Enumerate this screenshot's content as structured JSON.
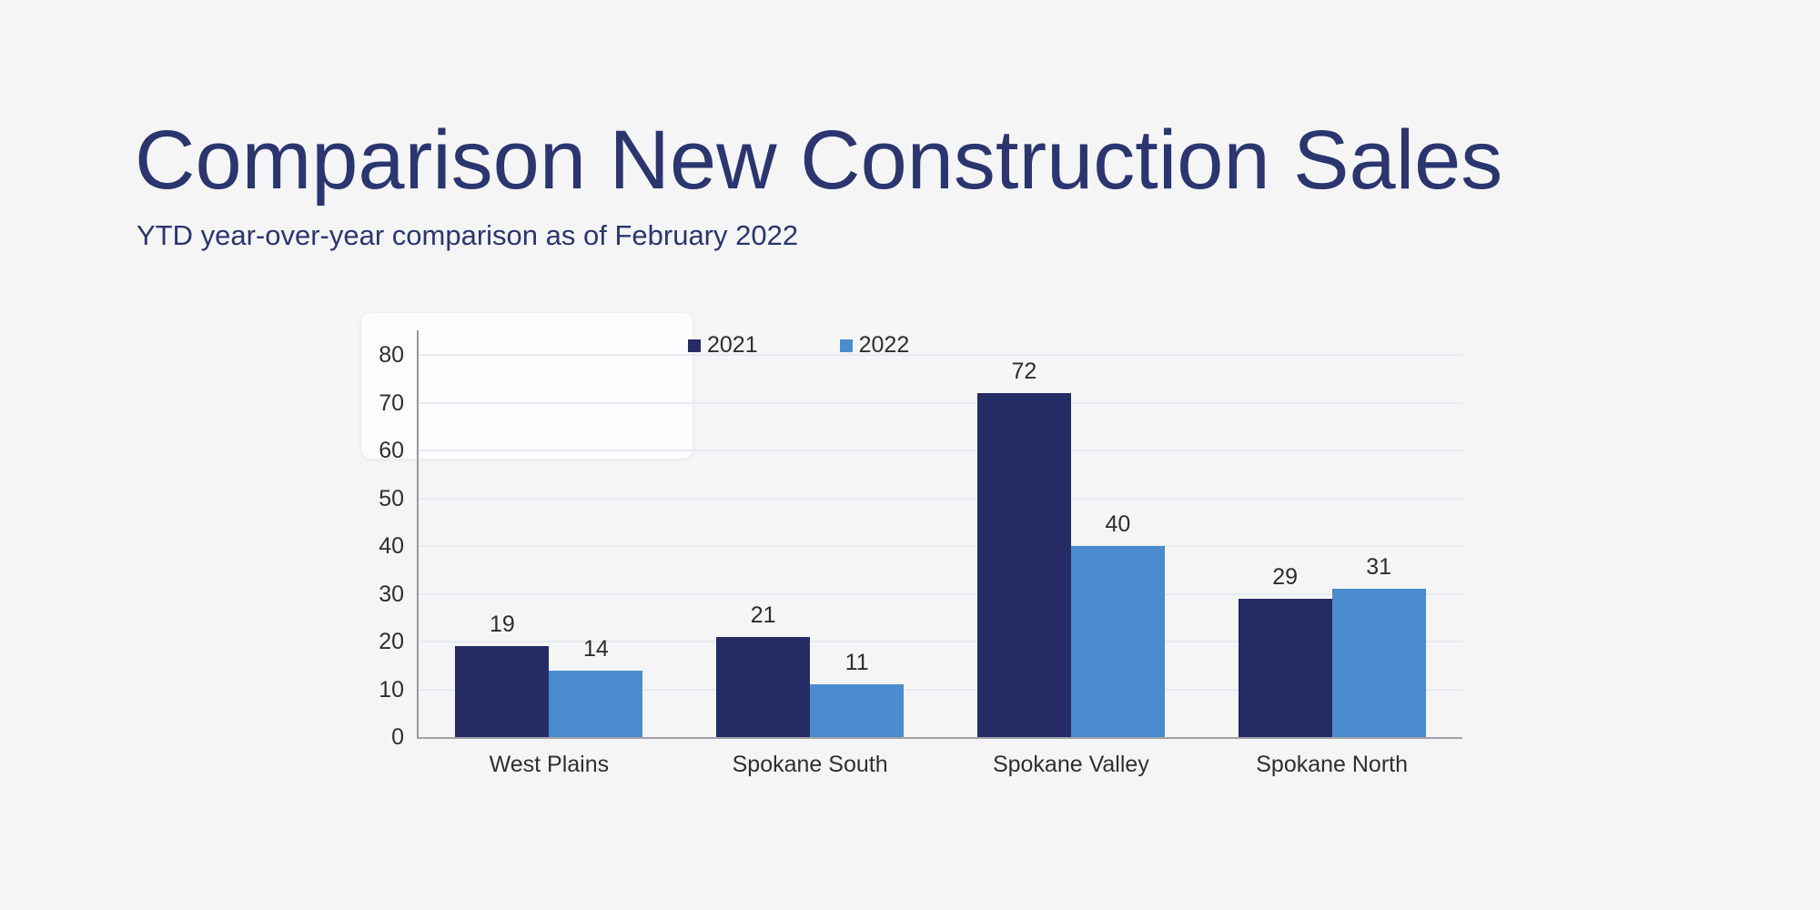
{
  "header": {
    "title": "Comparison New Construction Sales",
    "subtitle": "YTD year-over-year comparison as of February 2022"
  },
  "chart_data": {
    "type": "bar",
    "title": "",
    "xlabel": "",
    "ylabel": "",
    "categories": [
      "West Plains",
      "Spokane South",
      "Spokane Valley",
      "Spokane North"
    ],
    "series": [
      {
        "name": "2021",
        "color": "#252b64",
        "values": [
          19,
          21,
          72,
          29
        ]
      },
      {
        "name": "2022",
        "color": "#4a8ccd",
        "values": [
          14,
          11,
          40,
          31
        ]
      }
    ],
    "ylim": [
      0,
      80
    ],
    "yticks": [
      0,
      10,
      20,
      30,
      40,
      50,
      60,
      70,
      80
    ],
    "grid": true,
    "data_labels": true,
    "legend_position": "top"
  },
  "colors": {
    "background": "#f5f5f6",
    "heading_text": "#2b356f",
    "axis_line": "#9b9b9f",
    "gridline": "#e7eaf2",
    "tick_text": "#2f2f31",
    "panel": "#fcfcfe"
  }
}
